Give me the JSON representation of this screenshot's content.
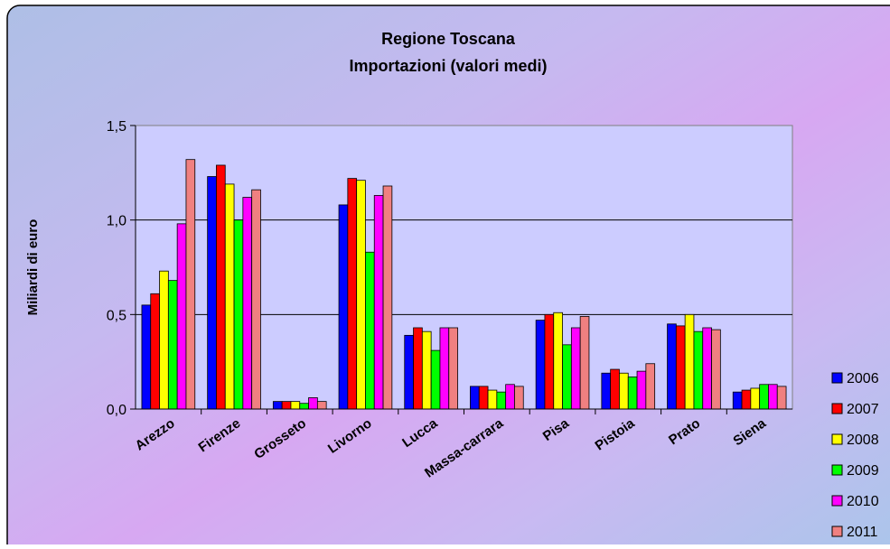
{
  "chart_data": {
    "type": "bar",
    "title": "Regione Toscana",
    "subtitle": "Importazioni (valori medi)",
    "xlabel": "",
    "ylabel": "Miliardi di euro",
    "ylim": [
      0,
      1.5
    ],
    "yticks": [
      "0,0",
      "0,5",
      "1,0",
      "1,5"
    ],
    "ytick_values": [
      0,
      0.5,
      1.0,
      1.5
    ],
    "grid": true,
    "legend_position": "right",
    "categories": [
      "Arezzo",
      "Firenze",
      "Grosseto",
      "Livorno",
      "Lucca",
      "Massa-carrara",
      "Pisa",
      "Pistoia",
      "Prato",
      "Siena"
    ],
    "series": [
      {
        "name": "2006",
        "color": "#0000FF",
        "values": [
          0.55,
          1.23,
          0.04,
          1.08,
          0.39,
          0.12,
          0.47,
          0.19,
          0.45,
          0.09
        ]
      },
      {
        "name": "2007",
        "color": "#FF0000",
        "values": [
          0.61,
          1.29,
          0.04,
          1.22,
          0.43,
          0.12,
          0.5,
          0.21,
          0.44,
          0.1
        ]
      },
      {
        "name": "2008",
        "color": "#FFFF00",
        "values": [
          0.73,
          1.19,
          0.04,
          1.21,
          0.41,
          0.1,
          0.51,
          0.19,
          0.5,
          0.11
        ]
      },
      {
        "name": "2009",
        "color": "#00FF00",
        "values": [
          0.68,
          1.0,
          0.03,
          0.83,
          0.31,
          0.09,
          0.34,
          0.17,
          0.41,
          0.13
        ]
      },
      {
        "name": "2010",
        "color": "#FF00FF",
        "values": [
          0.98,
          1.12,
          0.06,
          1.13,
          0.43,
          0.13,
          0.43,
          0.2,
          0.43,
          0.13
        ]
      },
      {
        "name": "2011",
        "color": "#F08080",
        "values": [
          1.32,
          1.16,
          0.04,
          1.18,
          0.43,
          0.12,
          0.49,
          0.24,
          0.42,
          0.12
        ]
      }
    ]
  }
}
